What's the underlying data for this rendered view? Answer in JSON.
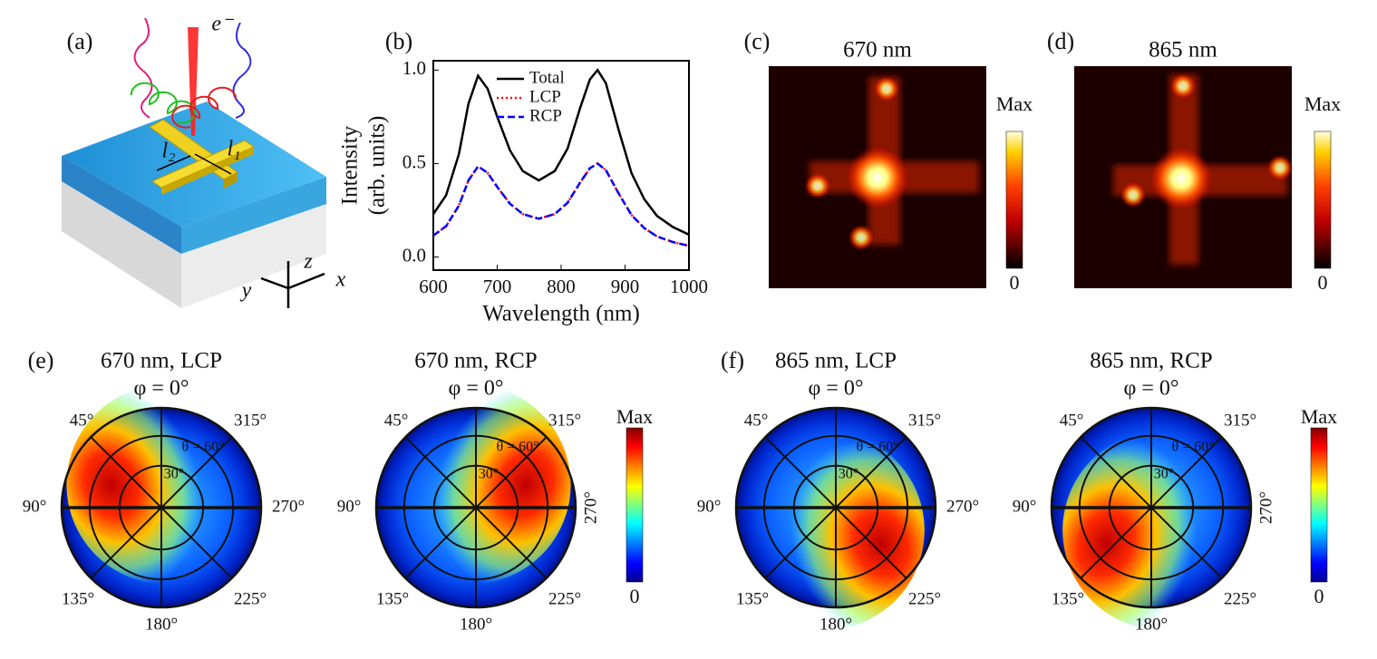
{
  "panel_a": {
    "label": "(a)",
    "beam_label": "e⁻",
    "arm_labels": [
      "l₂",
      "l₁"
    ],
    "axis_labels": [
      "z",
      "y",
      "x"
    ]
  },
  "chart_data": {
    "type": "line",
    "label": "(b)",
    "x_label": "Wavelength (nm)",
    "y_label": [
      "Intensity",
      "(arb. units)"
    ],
    "x": [
      600,
      620,
      640,
      655,
      670,
      685,
      700,
      720,
      740,
      765,
      790,
      810,
      830,
      845,
      857,
      870,
      890,
      910,
      930,
      950,
      975,
      1000
    ],
    "series": [
      {
        "name": "Total",
        "color": "#000000",
        "style": "solid",
        "values": [
          0.23,
          0.33,
          0.55,
          0.82,
          0.97,
          0.9,
          0.75,
          0.57,
          0.46,
          0.41,
          0.46,
          0.58,
          0.8,
          0.95,
          1.0,
          0.93,
          0.68,
          0.45,
          0.31,
          0.22,
          0.16,
          0.12
        ]
      },
      {
        "name": "LCP",
        "color": "#ff0000",
        "style": "dotted",
        "values": [
          0.115,
          0.165,
          0.275,
          0.41,
          0.485,
          0.45,
          0.375,
          0.285,
          0.23,
          0.205,
          0.23,
          0.29,
          0.4,
          0.475,
          0.5,
          0.465,
          0.34,
          0.225,
          0.155,
          0.11,
          0.08,
          0.06
        ]
      },
      {
        "name": "RCP",
        "color": "#0000ff",
        "style": "dashed",
        "values": [
          0.115,
          0.165,
          0.275,
          0.41,
          0.485,
          0.45,
          0.375,
          0.285,
          0.23,
          0.205,
          0.23,
          0.29,
          0.4,
          0.475,
          0.5,
          0.465,
          0.34,
          0.225,
          0.155,
          0.11,
          0.08,
          0.06
        ]
      }
    ],
    "xlim": [
      600,
      1000
    ],
    "xticks": [
      600,
      700,
      800,
      900,
      1000
    ],
    "ylim": [
      -0.07,
      1.05
    ],
    "yticks": [
      {
        "value": 0,
        "label": "0.0"
      },
      {
        "value": 0.5,
        "label": "0.5"
      },
      {
        "value": 1,
        "label": "1.0"
      }
    ],
    "legend": "upper-center"
  },
  "maps": [
    {
      "label": "(c)",
      "title": "670 nm"
    },
    {
      "label": "(d)",
      "title": "865 nm"
    }
  ],
  "colorbar_labels": [
    "Max",
    "0"
  ],
  "polar": {
    "group_labels": [
      "(e)",
      "(f)"
    ],
    "plots": [
      {
        "title": "670 nm, LCP",
        "color": "#ff0000"
      },
      {
        "title": "670 nm, RCP",
        "color": "#0000ff"
      },
      {
        "title": "865 nm, LCP",
        "color": "#ff0000"
      },
      {
        "title": "865 nm, RCP",
        "color": "#0000ff"
      }
    ],
    "axis_title": "φ = 0°",
    "angle_labels": [
      "45°",
      "315°",
      "90°",
      "270°",
      "135°",
      "225°",
      "180°"
    ],
    "ring_labels": [
      "θ = 60°",
      "30°"
    ]
  }
}
